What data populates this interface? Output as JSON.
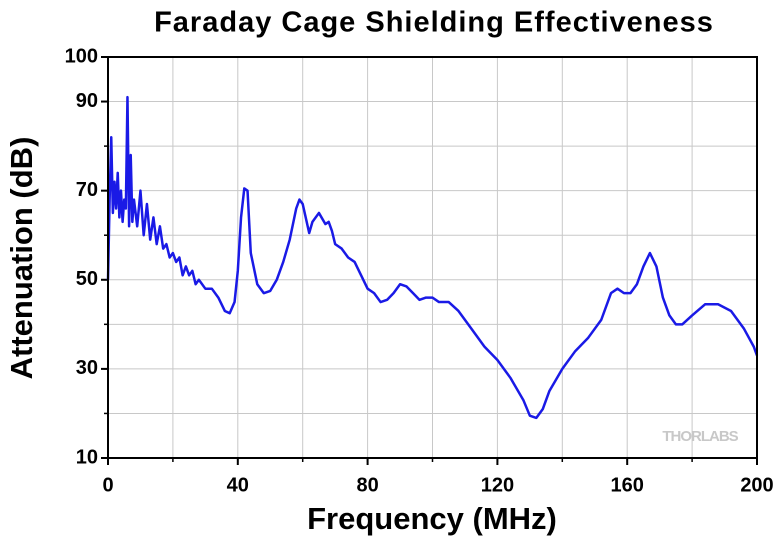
{
  "chart_data": {
    "type": "line",
    "title": "Faraday Cage Shielding Effectiveness",
    "xlabel": "Frequency (MHz)",
    "ylabel": "Attenuation (dB)",
    "annotation": "THORLABS",
    "xlim": [
      0,
      200
    ],
    "ylim": [
      10,
      100
    ],
    "xticks": [
      0,
      40,
      80,
      120,
      160,
      200
    ],
    "yticks": [
      10,
      30,
      50,
      70,
      90,
      100
    ],
    "xgrid": [
      0,
      20,
      40,
      60,
      80,
      100,
      120,
      140,
      160,
      180,
      200
    ],
    "ygrid": [
      10,
      20,
      30,
      40,
      50,
      60,
      70,
      80,
      90,
      100
    ],
    "grid": true,
    "series": [
      {
        "color": "#1a1ae6",
        "x": [
          0,
          0.5,
          1,
          1.5,
          2,
          2.5,
          3,
          3.5,
          4,
          4.5,
          5,
          5.5,
          6,
          6.5,
          7,
          7.5,
          8,
          9,
          10,
          11,
          12,
          13,
          14,
          15,
          16,
          17,
          18,
          19,
          20,
          21,
          22,
          23,
          24,
          25,
          26,
          27,
          28,
          30,
          32,
          34,
          36,
          37.5,
          39,
          40,
          41,
          42,
          43,
          44,
          46,
          48,
          50,
          52,
          54,
          56,
          58,
          59,
          60,
          62,
          63,
          65,
          67,
          68,
          69,
          70,
          72,
          74,
          76,
          78,
          80,
          82,
          84,
          86,
          88,
          90,
          92,
          94,
          96,
          98,
          100,
          102,
          105,
          108,
          112,
          116,
          120,
          124,
          128,
          130,
          132,
          134,
          136,
          140,
          144,
          148,
          152,
          155,
          157,
          159,
          161,
          163,
          165,
          167,
          169,
          171,
          173,
          175,
          177,
          180,
          184,
          188,
          192,
          196,
          199,
          200
        ],
        "values": [
          50,
          68,
          82,
          65,
          72,
          66,
          74,
          64,
          70,
          63,
          68,
          66,
          91,
          62,
          78,
          63,
          68,
          62,
          70,
          60,
          67,
          59,
          64,
          58,
          62,
          57,
          58,
          55,
          56,
          54,
          55,
          51,
          53,
          51,
          52,
          49,
          50,
          48,
          48,
          46,
          43,
          42.5,
          45,
          52,
          64,
          70.5,
          70,
          56,
          49,
          47,
          47.5,
          50,
          54,
          59,
          66,
          68,
          67,
          60.5,
          63,
          65,
          62.5,
          63,
          61,
          58,
          57,
          55,
          54,
          51,
          48,
          47,
          45,
          45.5,
          47,
          49,
          48.5,
          47,
          45.5,
          46,
          46,
          45,
          45,
          43,
          39,
          35,
          32,
          28,
          23,
          19.5,
          19,
          21,
          25,
          30,
          34,
          37,
          41,
          47,
          48,
          47,
          47,
          49,
          53,
          56,
          53,
          46,
          42,
          40,
          40,
          42,
          44.5,
          44.5,
          43,
          39,
          35,
          33
        ]
      }
    ]
  }
}
